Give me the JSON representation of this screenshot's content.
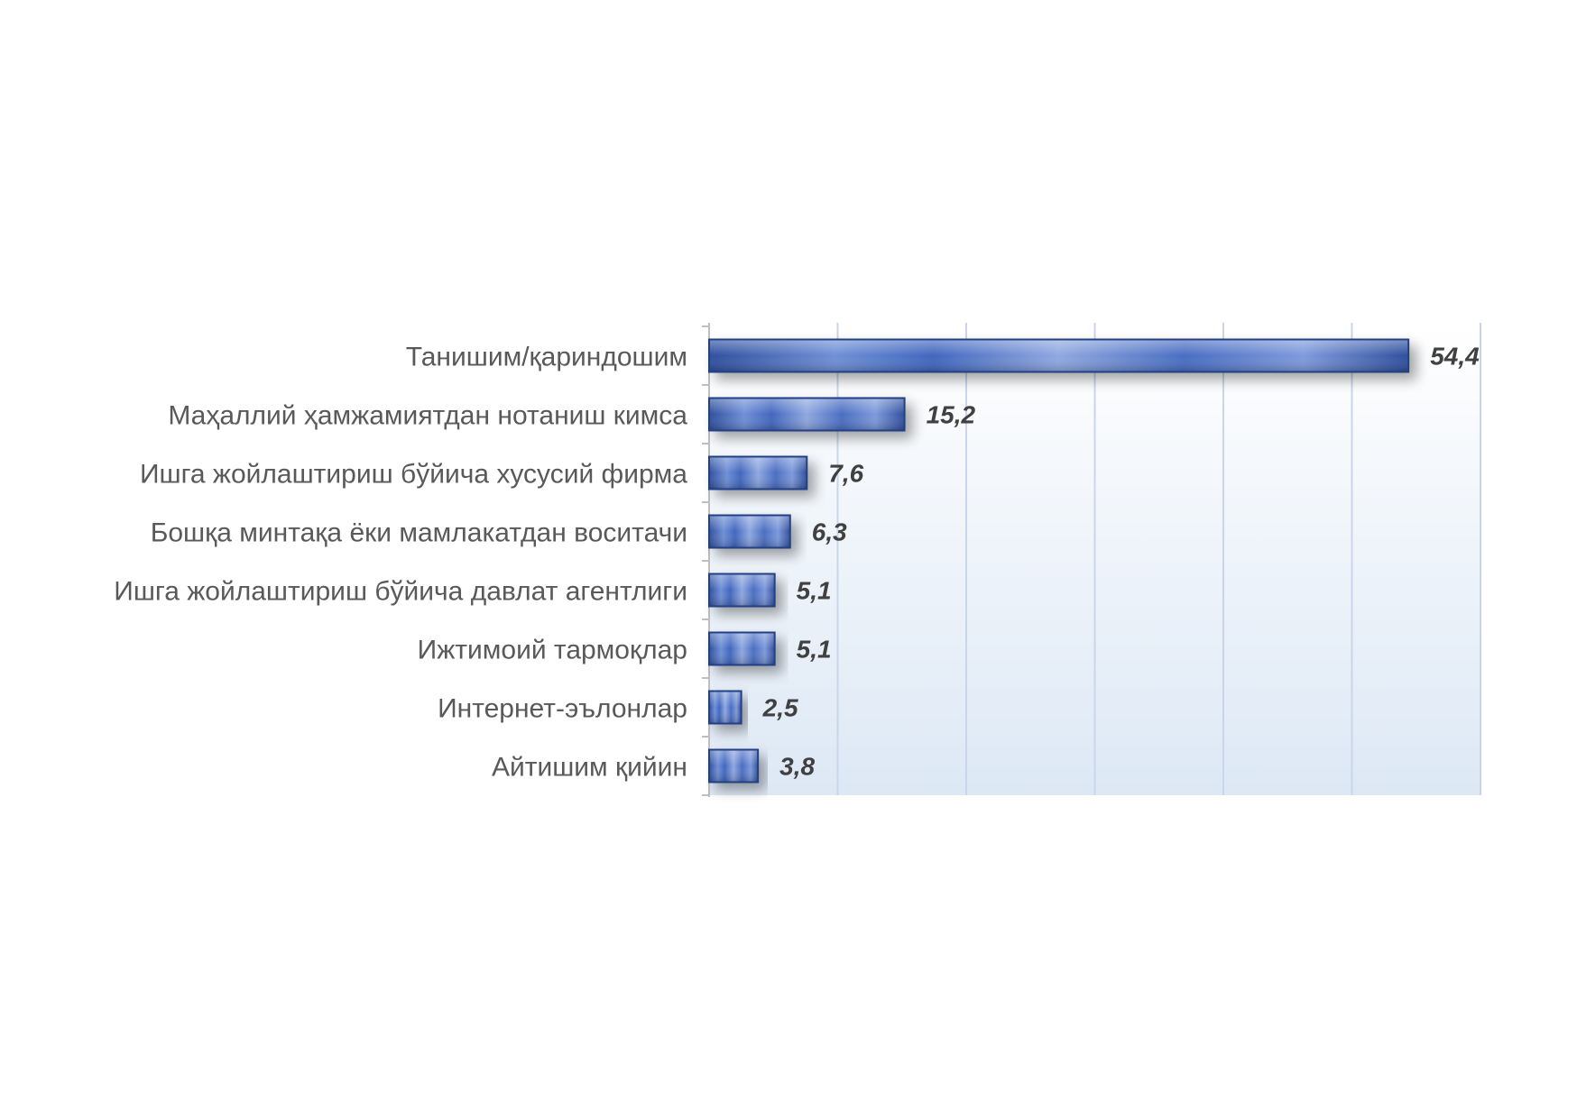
{
  "chart_data": {
    "type": "bar",
    "orientation": "horizontal",
    "categories": [
      "Танишим/қариндошим",
      "Маҳаллий ҳамжамиятдан нотаниш кимса",
      "Ишга жойлаштириш бўйича хусусий фирма",
      "Бошқа минтақа ёки мамлакатдан воситачи",
      "Ишга жойлаштириш бўйича давлат агентлиги",
      "Ижтимоий тармоқлар",
      "Интернет-эълонлар",
      "Айтишим қийин"
    ],
    "values": [
      54.4,
      15.2,
      7.6,
      6.3,
      5.1,
      5.1,
      2.5,
      3.8
    ],
    "value_labels": [
      "54,4",
      "15,2",
      "7,6",
      "6,3",
      "5,1",
      "5,1",
      "2,5",
      "3,8"
    ],
    "xlim": [
      0,
      60
    ],
    "x_gridlines": [
      10,
      20,
      30,
      40,
      50,
      60
    ],
    "grid": true,
    "legend": "none",
    "colors": {
      "bar_dark": "#2f4f9e",
      "bar_light": "#8fa8e0",
      "bar_edge": "#243f86",
      "plot_bg_top": "#ffffff",
      "plot_bg_bottom": "#dde8f5",
      "gridline": "#c9d6ea"
    }
  }
}
